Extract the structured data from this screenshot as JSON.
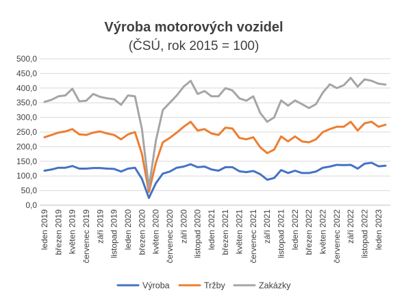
{
  "chart_data": {
    "type": "line",
    "title": "Výroba motorových vozidel",
    "subtitle": "(ČSÚ, rok 2015 = 100)",
    "ylim": [
      0,
      500
    ],
    "yticks": [
      "0,0",
      "50,0",
      "100,0",
      "150,0",
      "200,0",
      "250,0",
      "300,0",
      "350,0",
      "400,0",
      "450,0",
      "500,0"
    ],
    "grid": true,
    "legend": "bottom",
    "x": [
      "2019-01",
      "2019-02",
      "2019-03",
      "2019-04",
      "2019-05",
      "2019-06",
      "2019-07",
      "2019-08",
      "2019-09",
      "2019-10",
      "2019-11",
      "2019-12",
      "2020-01",
      "2020-02",
      "2020-03",
      "2020-04",
      "2020-05",
      "2020-06",
      "2020-07",
      "2020-08",
      "2020-09",
      "2020-10",
      "2020-11",
      "2020-12",
      "2021-01",
      "2021-02",
      "2021-03",
      "2021-04",
      "2021-05",
      "2021-06",
      "2021-07",
      "2021-08",
      "2021-09",
      "2021-10",
      "2021-11",
      "2021-12",
      "2022-01",
      "2022-02",
      "2022-03",
      "2022-04",
      "2022-05",
      "2022-06",
      "2022-07",
      "2022-08",
      "2022-09",
      "2022-10",
      "2022-11",
      "2022-12",
      "2023-01",
      "2023-02"
    ],
    "xtick_labels": [
      "leden 2019",
      "březen 2019",
      "květen 2019",
      "červenec 2019",
      "září 2019",
      "listopad 2019",
      "leden 2020",
      "březen 2020",
      "květen 2020",
      "červenec 2020",
      "září 2020",
      "listopad 2020",
      "leden 2021",
      "březen 2021",
      "květen 2021",
      "červenec 2021",
      "září 2021",
      "listopad 2021",
      "leden 2022",
      "březen 2022",
      "květen 2022",
      "červenec 2022",
      "září 2022",
      "listopad 2022",
      "leden 2023"
    ],
    "series": [
      {
        "name": "Výroba",
        "color": "#4472c4",
        "values": [
          118,
          122,
          128,
          128,
          134,
          125,
          125,
          127,
          127,
          125,
          124,
          115,
          125,
          128,
          90,
          25,
          75,
          108,
          115,
          128,
          132,
          140,
          130,
          132,
          122,
          118,
          130,
          130,
          116,
          113,
          117,
          106,
          87,
          93,
          120,
          110,
          118,
          110,
          110,
          115,
          128,
          132,
          138,
          137,
          138,
          125,
          142,
          145,
          133,
          135
        ]
      },
      {
        "name": "Tržby",
        "color": "#ed7d31",
        "values": [
          232,
          240,
          248,
          252,
          260,
          242,
          240,
          248,
          252,
          245,
          240,
          225,
          242,
          250,
          175,
          45,
          145,
          215,
          230,
          248,
          268,
          285,
          255,
          260,
          245,
          240,
          265,
          262,
          230,
          225,
          232,
          198,
          178,
          190,
          235,
          218,
          235,
          218,
          215,
          225,
          250,
          260,
          268,
          268,
          285,
          255,
          280,
          285,
          268,
          275
        ]
      },
      {
        "name": "Zakázky",
        "color": "#a5a5a5",
        "values": [
          353,
          360,
          372,
          375,
          398,
          355,
          357,
          380,
          370,
          365,
          362,
          343,
          375,
          372,
          260,
          60,
          220,
          325,
          350,
          375,
          405,
          425,
          380,
          390,
          372,
          372,
          400,
          392,
          365,
          357,
          372,
          315,
          285,
          300,
          358,
          340,
          358,
          345,
          332,
          345,
          385,
          413,
          400,
          410,
          435,
          405,
          430,
          425,
          415,
          412
        ]
      }
    ]
  }
}
